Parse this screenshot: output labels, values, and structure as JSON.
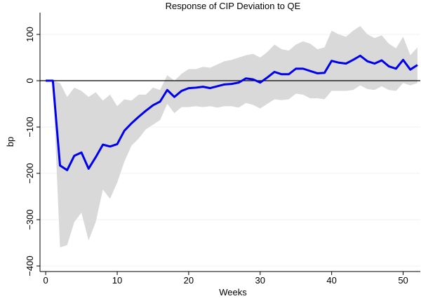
{
  "chart_data": {
    "type": "line",
    "title": "Response of CIP Deviation to QE",
    "x_label": "Weeks",
    "y_label": "bp",
    "x": [
      0,
      1,
      2,
      3,
      4,
      5,
      6,
      7,
      8,
      9,
      10,
      11,
      12,
      13,
      14,
      15,
      16,
      17,
      18,
      19,
      20,
      21,
      22,
      23,
      24,
      25,
      26,
      27,
      28,
      29,
      30,
      31,
      32,
      33,
      34,
      35,
      36,
      37,
      38,
      39,
      40,
      41,
      42,
      43,
      44,
      45,
      46,
      47,
      48,
      49,
      50,
      51,
      52
    ],
    "values": [
      0,
      0,
      -183,
      -193,
      -162,
      -155,
      -190,
      -165,
      -138,
      -142,
      -137,
      -108,
      -92,
      -78,
      -65,
      -53,
      -45,
      -20,
      -35,
      -22,
      -16,
      -15,
      -13,
      -16,
      -12,
      -8,
      -7,
      -4,
      5,
      3,
      -4,
      7,
      19,
      14,
      14,
      26,
      26,
      21,
      16,
      17,
      43,
      39,
      37,
      45,
      54,
      42,
      37,
      44,
      31,
      26,
      45,
      24,
      34
    ],
    "color": "#0000ee",
    "band": {
      "color": "#d9d9d9",
      "lower": [
        0,
        0,
        -360,
        -355,
        -305,
        -285,
        -345,
        -305,
        -235,
        -255,
        -220,
        -175,
        -140,
        -125,
        -105,
        -95,
        -85,
        -50,
        -70,
        -57,
        -57,
        -55,
        -57,
        -55,
        -58,
        -55,
        -55,
        -58,
        -48,
        -52,
        -60,
        -50,
        -40,
        -42,
        -40,
        -28,
        -30,
        -38,
        -38,
        -40,
        -22,
        -22,
        -22,
        -20,
        -10,
        -18,
        -20,
        -12,
        -20,
        -22,
        -5,
        -10,
        -5
      ],
      "upper": [
        0,
        0,
        -5,
        -35,
        -15,
        -22,
        -35,
        -25,
        -43,
        -30,
        -55,
        -40,
        -43,
        -30,
        -30,
        -15,
        -20,
        12,
        0,
        15,
        25,
        25,
        30,
        28,
        35,
        42,
        45,
        50,
        55,
        58,
        50,
        62,
        78,
        68,
        65,
        78,
        85,
        80,
        68,
        72,
        108,
        100,
        95,
        108,
        118,
        100,
        92,
        98,
        80,
        70,
        95,
        55,
        72
      ]
    },
    "hline": 0,
    "xlim": [
      -0.8,
      52.4
    ],
    "ylim": [
      -412,
      147
    ],
    "xticks": [
      0,
      10,
      20,
      30,
      40,
      50
    ],
    "yticks": [
      {
        "value": -400,
        "label": "−400"
      },
      {
        "value": -300,
        "label": "−300"
      },
      {
        "value": -200,
        "label": "−200"
      },
      {
        "value": -100,
        "label": "−100"
      },
      0,
      100
    ],
    "grid": true
  }
}
